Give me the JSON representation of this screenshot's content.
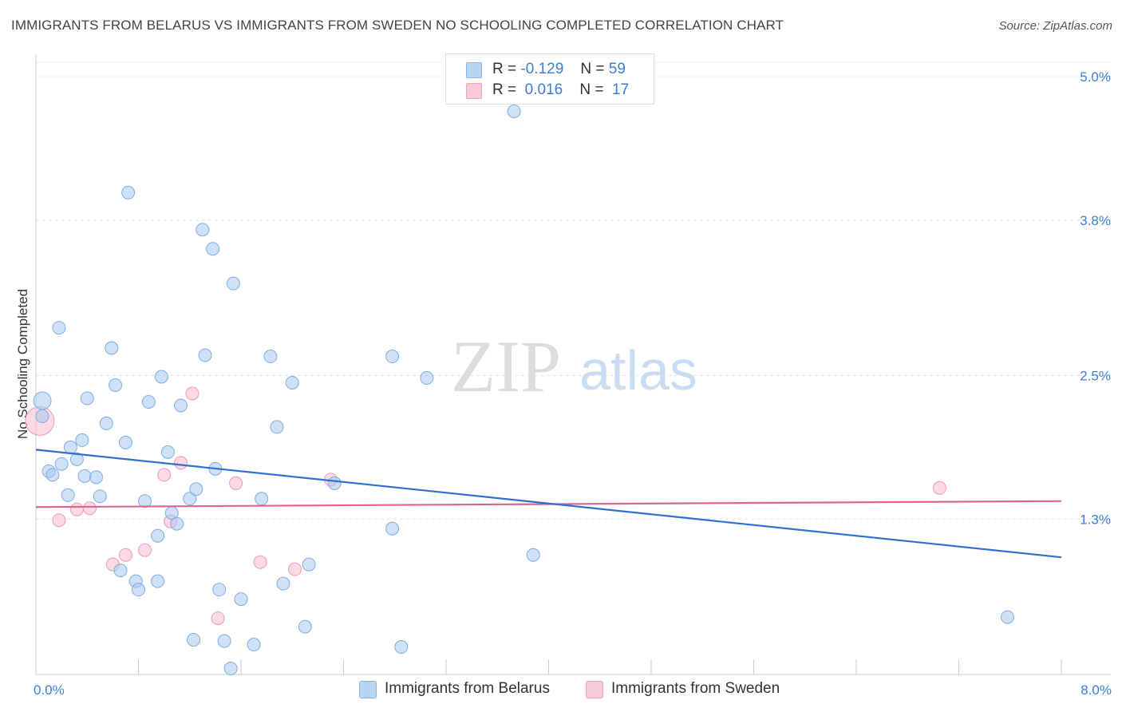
{
  "title": "IMMIGRANTS FROM BELARUS VS IMMIGRANTS FROM SWEDEN NO SCHOOLING COMPLETED CORRELATION CHART",
  "source": "Source: ZipAtlas.com",
  "watermark": {
    "zip": "ZIP",
    "atlas": "atlas"
  },
  "legend": {
    "rows": [
      {
        "r_label": "R =",
        "r_value": "-0.129",
        "n_label": "N =",
        "n_value": "59"
      },
      {
        "r_label": "R =",
        "r_value": "0.016",
        "n_label": "N =",
        "n_value": "17"
      }
    ]
  },
  "chart_data": {
    "type": "scatter",
    "title": "IMMIGRANTS FROM BELARUS VS IMMIGRANTS FROM SWEDEN NO SCHOOLING COMPLETED CORRELATION CHART",
    "xlabel": "",
    "ylabel": "No Schooling Completed",
    "xlim": [
      0,
      8.0
    ],
    "ylim": [
      0,
      5.0
    ],
    "x_tick_labels": [
      "0.0%",
      "8.0%"
    ],
    "y_ticks": [
      1.3,
      2.5,
      3.8,
      5.0
    ],
    "y_tick_labels": [
      "1.3%",
      "2.5%",
      "3.8%",
      "5.0%"
    ],
    "grid": true,
    "colors": {
      "belarus": "#a8c8ee",
      "belarus_stroke": "#7faee0",
      "belarus_line": "#2f6fd0",
      "sweden": "#f7bcd0",
      "sweden_stroke": "#ee9ab6",
      "sweden_line": "#e0648f"
    },
    "series": [
      {
        "name": "Immigrants from Belarus",
        "r": -0.129,
        "n": 59,
        "trend": [
          [
            0,
            1.88
          ],
          [
            8.0,
            0.98
          ]
        ],
        "points": [
          [
            0.05,
            2.29
          ],
          [
            0.05,
            2.16
          ],
          [
            0.1,
            1.7
          ],
          [
            0.13,
            1.67
          ],
          [
            0.18,
            2.9
          ],
          [
            0.2,
            1.76
          ],
          [
            0.25,
            1.5
          ],
          [
            0.27,
            1.9
          ],
          [
            0.32,
            1.8
          ],
          [
            0.36,
            1.96
          ],
          [
            0.38,
            1.66
          ],
          [
            0.4,
            2.31
          ],
          [
            0.47,
            1.65
          ],
          [
            0.5,
            1.49
          ],
          [
            0.55,
            2.1
          ],
          [
            0.59,
            2.73
          ],
          [
            0.62,
            2.42
          ],
          [
            0.66,
            0.87
          ],
          [
            0.7,
            1.94
          ],
          [
            0.72,
            4.03
          ],
          [
            0.78,
            0.78
          ],
          [
            0.8,
            0.71
          ],
          [
            0.85,
            1.45
          ],
          [
            0.88,
            2.28
          ],
          [
            0.95,
            1.16
          ],
          [
            0.95,
            0.78
          ],
          [
            0.98,
            2.49
          ],
          [
            1.03,
            1.86
          ],
          [
            1.06,
            1.35
          ],
          [
            1.1,
            1.26
          ],
          [
            1.13,
            2.25
          ],
          [
            1.2,
            1.47
          ],
          [
            1.23,
            0.29
          ],
          [
            1.25,
            1.55
          ],
          [
            1.3,
            3.72
          ],
          [
            1.32,
            2.67
          ],
          [
            1.38,
            3.56
          ],
          [
            1.4,
            1.72
          ],
          [
            1.43,
            0.71
          ],
          [
            1.47,
            0.28
          ],
          [
            1.52,
            0.05
          ],
          [
            1.54,
            3.27
          ],
          [
            1.6,
            0.63
          ],
          [
            1.7,
            0.25
          ],
          [
            1.76,
            1.47
          ],
          [
            1.83,
            2.66
          ],
          [
            1.88,
            2.07
          ],
          [
            1.93,
            0.76
          ],
          [
            2.0,
            2.44
          ],
          [
            2.1,
            0.4
          ],
          [
            2.13,
            0.92
          ],
          [
            2.33,
            1.6
          ],
          [
            2.78,
            2.66
          ],
          [
            2.78,
            1.22
          ],
          [
            2.85,
            0.23
          ],
          [
            3.05,
            2.48
          ],
          [
            3.73,
            4.71
          ],
          [
            3.88,
            1.0
          ],
          [
            7.58,
            0.48
          ]
        ]
      },
      {
        "name": "Immigrants from Sweden",
        "r": 0.016,
        "n": 17,
        "trend": [
          [
            0,
            1.4
          ],
          [
            8.0,
            1.45
          ]
        ],
        "points": [
          [
            0.03,
            2.12
          ],
          [
            0.18,
            1.29
          ],
          [
            0.32,
            1.38
          ],
          [
            0.42,
            1.39
          ],
          [
            0.6,
            0.92
          ],
          [
            0.7,
            1.0
          ],
          [
            0.85,
            1.04
          ],
          [
            1.0,
            1.67
          ],
          [
            1.05,
            1.28
          ],
          [
            1.13,
            1.77
          ],
          [
            1.22,
            2.35
          ],
          [
            1.42,
            0.47
          ],
          [
            1.56,
            1.6
          ],
          [
            1.75,
            0.94
          ],
          [
            2.02,
            0.88
          ],
          [
            2.3,
            1.63
          ],
          [
            7.05,
            1.56
          ]
        ]
      }
    ]
  }
}
